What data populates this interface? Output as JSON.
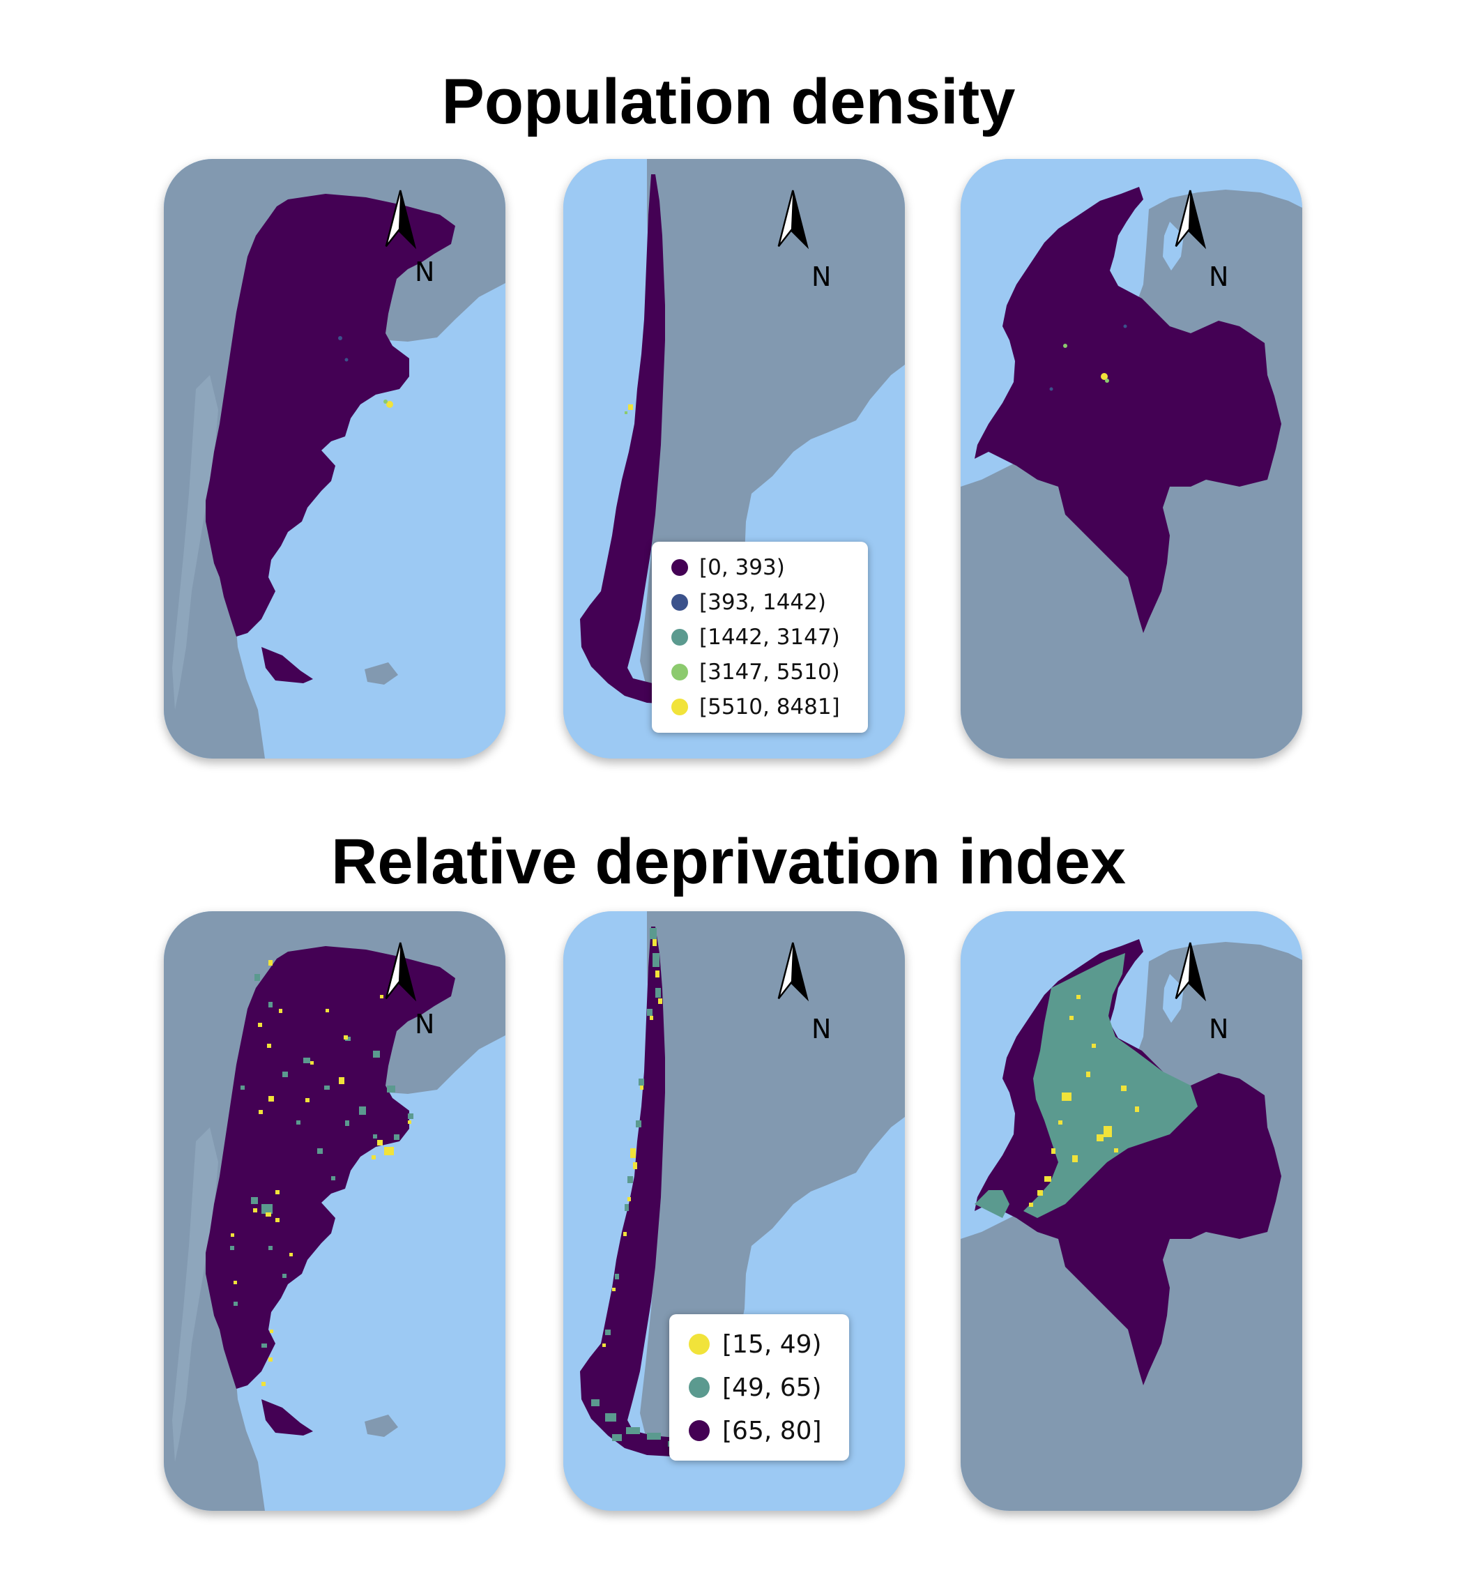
{
  "titles": {
    "top": "Population density",
    "bottom": "Relative deprivation index"
  },
  "north_arrow_label": "N",
  "colors": {
    "ocean": "#9cc9f3",
    "land_background": "#8299b0",
    "country_fill": "#440154",
    "deprivation_mid": "#5b9a8f",
    "deprivation_high": "#f1e33a"
  },
  "legends": {
    "density": {
      "items": [
        {
          "label": "[0, 393)",
          "color": "#440154"
        },
        {
          "label": "[393, 1442)",
          "color": "#3b528b"
        },
        {
          "label": "[1442, 3147)",
          "color": "#5b9a8f"
        },
        {
          "label": "[3147, 5510)",
          "color": "#8cca6e"
        },
        {
          "label": "[5510, 8481]",
          "color": "#f1e33a"
        }
      ]
    },
    "deprivation": {
      "items": [
        {
          "label": "[15, 49)",
          "color": "#f1e33a"
        },
        {
          "label": "[49, 65)",
          "color": "#5b9a8f"
        },
        {
          "label": "[65, 80]",
          "color": "#440154"
        }
      ]
    }
  }
}
